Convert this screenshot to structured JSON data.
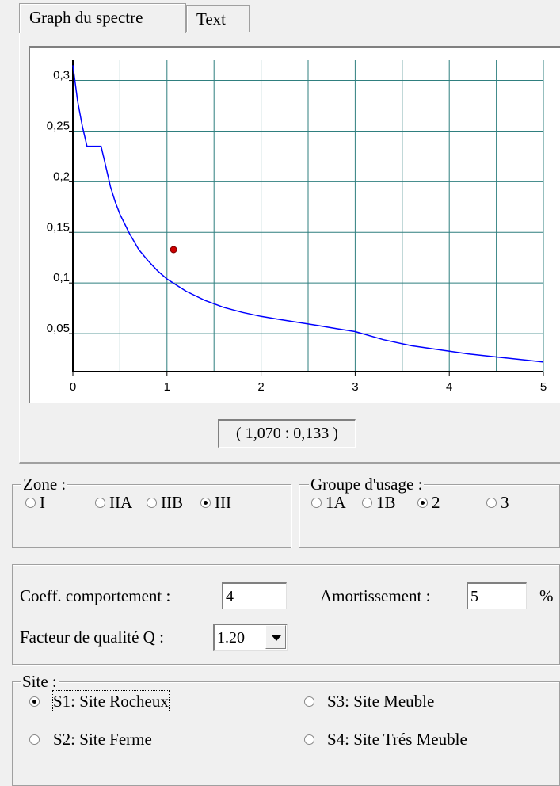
{
  "tabs": [
    {
      "label": "Graph du spectre",
      "active": true
    },
    {
      "label": "Text",
      "active": false
    }
  ],
  "chart_data": {
    "type": "line",
    "xlim": [
      0,
      5
    ],
    "ylim": [
      0.0125,
      0.32
    ],
    "x_ticks": [
      0,
      1,
      2,
      3,
      4,
      5
    ],
    "x_tick_labels": [
      "0",
      "1",
      "2",
      "3",
      "4",
      "5"
    ],
    "y_ticks": [
      0.05,
      0.1,
      0.15,
      0.2,
      0.25,
      0.3
    ],
    "y_tick_labels": [
      "0,05",
      "0,1",
      "0,15",
      "0,2",
      "0,25",
      "0,3"
    ],
    "grid": true,
    "series": [
      {
        "color": "#0000ff",
        "x": [
          0,
          0.05,
          0.1,
          0.15,
          0.3,
          0.35,
          0.4,
          0.45,
          0.5,
          0.6,
          0.7,
          0.8,
          0.9,
          1.0,
          1.2,
          1.4,
          1.6,
          1.8,
          2.0,
          2.2,
          2.4,
          2.6,
          2.8,
          3.0,
          3.3,
          3.6,
          3.9,
          4.2,
          4.5,
          4.8,
          5.0
        ],
        "y": [
          0.315,
          0.28,
          0.255,
          0.235,
          0.235,
          0.215,
          0.195,
          0.18,
          0.168,
          0.149,
          0.133,
          0.122,
          0.112,
          0.104,
          0.092,
          0.083,
          0.076,
          0.071,
          0.067,
          0.064,
          0.061,
          0.058,
          0.055,
          0.052,
          0.044,
          0.038,
          0.034,
          0.03,
          0.027,
          0.024,
          0.022
        ]
      }
    ],
    "marker": {
      "x": 1.07,
      "y": 0.133,
      "color": "#cc0000"
    }
  },
  "coord_readout": "( 1,070 : 0,133 )",
  "zone": {
    "title": "Zone :",
    "options": [
      {
        "label": "I",
        "checked": false
      },
      {
        "label": "IIA",
        "checked": false
      },
      {
        "label": "IIB",
        "checked": false
      },
      {
        "label": "III",
        "checked": true
      }
    ]
  },
  "groupe": {
    "title": "Groupe d'usage :",
    "options": [
      {
        "label": "1A",
        "checked": false
      },
      {
        "label": "1B",
        "checked": false
      },
      {
        "label": "2",
        "checked": true
      },
      {
        "label": "3",
        "checked": false
      }
    ]
  },
  "params": {
    "coeff_label": "Coeff. comportement :",
    "coeff_value": "4",
    "amort_label": "Amortissement :",
    "amort_value": "5",
    "amort_unit": "%",
    "facteur_label": "Facteur de qualité Q :",
    "facteur_value": "1.20"
  },
  "site": {
    "title": "Site :",
    "options": [
      {
        "label": "S1: Site Rocheux",
        "checked": true
      },
      {
        "label": "S3: Site Meuble",
        "checked": false
      },
      {
        "label": "S2: Site Ferme",
        "checked": false
      },
      {
        "label": "S4: Site Trés Meuble",
        "checked": false
      }
    ]
  }
}
